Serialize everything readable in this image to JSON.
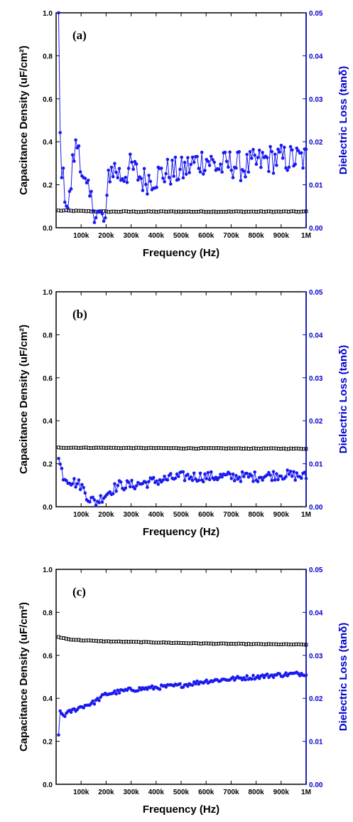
{
  "colors": {
    "left_axis": "#000000",
    "right_axis": "#0000cc",
    "loss_series": "#1a1aee",
    "cap_series": "#000000"
  },
  "chart_data": [
    {
      "type": "scatter",
      "panel_label": "(a)",
      "xlabel": "Frequency (Hz)",
      "ylabel": "Capacitance Density (uF/cm²)",
      "y2label": "Dielectric Loss (tanδ)",
      "xlim": [
        0,
        1000000
      ],
      "ylim": [
        0,
        1.0
      ],
      "y2lim": [
        0,
        0.05
      ],
      "xticks": [
        "100k",
        "200k",
        "300k",
        "400k",
        "500k",
        "600k",
        "700k",
        "800k",
        "900k",
        "1M"
      ],
      "yticks": [
        "0.0",
        "0.2",
        "0.4",
        "0.6",
        "0.8",
        "1.0"
      ],
      "y2ticks": [
        "0.00",
        "0.01",
        "0.02",
        "0.03",
        "0.04",
        "0.05"
      ],
      "series": [
        {
          "axis": "left",
          "style": "open-square",
          "noise": 0.002,
          "values": [
            [
              10000,
              0.08
            ],
            [
              200000,
              0.075
            ],
            [
              1000000,
              0.075
            ]
          ]
        },
        {
          "axis": "right",
          "style": "filled-circle",
          "noise": 0.0035,
          "values": [
            [
              10000,
              0.05
            ],
            [
              15000,
              0.022
            ],
            [
              25000,
              0.012
            ],
            [
              50000,
              0.004
            ],
            [
              70000,
              0.017
            ],
            [
              90000,
              0.02
            ],
            [
              110000,
              0.01
            ],
            [
              140000,
              0.006
            ],
            [
              170000,
              0.003
            ],
            [
              200000,
              0.001
            ],
            [
              210000,
              0.013
            ],
            [
              230000,
              0.014
            ],
            [
              260000,
              0.012
            ],
            [
              300000,
              0.014
            ],
            [
              350000,
              0.011
            ],
            [
              400000,
              0.012
            ],
            [
              450000,
              0.013
            ],
            [
              500000,
              0.013
            ],
            [
              550000,
              0.015
            ],
            [
              600000,
              0.016
            ],
            [
              650000,
              0.014
            ],
            [
              700000,
              0.015
            ],
            [
              750000,
              0.014
            ],
            [
              800000,
              0.015
            ],
            [
              850000,
              0.016
            ],
            [
              900000,
              0.016
            ],
            [
              950000,
              0.016
            ],
            [
              1000000,
              0.016
            ]
          ]
        }
      ]
    },
    {
      "type": "scatter",
      "panel_label": "(b)",
      "xlabel": "Frequency (Hz)",
      "ylabel": "Capacitance Density (uF/cm²)",
      "y2label": "Dielectric Loss (tanδ)",
      "xlim": [
        0,
        1000000
      ],
      "ylim": [
        0,
        1.0
      ],
      "y2lim": [
        0,
        0.05
      ],
      "xticks": [
        "100k",
        "200k",
        "300k",
        "400k",
        "500k",
        "600k",
        "700k",
        "800k",
        "900k",
        "1M"
      ],
      "yticks": [
        "0.0",
        "0.2",
        "0.4",
        "0.6",
        "0.8",
        "1.0"
      ],
      "y2ticks": [
        "0.00",
        "0.01",
        "0.02",
        "0.03",
        "0.04",
        "0.05"
      ],
      "series": [
        {
          "axis": "left",
          "style": "open-square",
          "noise": 0.0015,
          "values": [
            [
              10000,
              0.275
            ],
            [
              500000,
              0.272
            ],
            [
              1000000,
              0.27
            ]
          ]
        },
        {
          "axis": "right",
          "style": "filled-circle",
          "noise": 0.0012,
          "values": [
            [
              10000,
              0.011
            ],
            [
              30000,
              0.007
            ],
            [
              60000,
              0.006
            ],
            [
              100000,
              0.005
            ],
            [
              130000,
              0.002
            ],
            [
              160000,
              0.001
            ],
            [
              200000,
              0.003
            ],
            [
              250000,
              0.005
            ],
            [
              300000,
              0.005
            ],
            [
              400000,
              0.006
            ],
            [
              500000,
              0.007
            ],
            [
              600000,
              0.007
            ],
            [
              700000,
              0.007
            ],
            [
              800000,
              0.007
            ],
            [
              900000,
              0.0075
            ],
            [
              1000000,
              0.007
            ]
          ]
        }
      ]
    },
    {
      "type": "scatter",
      "panel_label": "(c)",
      "xlabel": "Frequency (Hz)",
      "ylabel": "Capacitance Density (uF/cm²)",
      "y2label": "Dielectric Loss (tanδ)",
      "xlim": [
        0,
        1000000
      ],
      "ylim": [
        0,
        1.0
      ],
      "y2lim": [
        0,
        0.05
      ],
      "xticks": [
        "100k",
        "200k",
        "300k",
        "400k",
        "500k",
        "600k",
        "700k",
        "800k",
        "900k",
        "1M"
      ],
      "yticks": [
        "0.0",
        "0.2",
        "0.4",
        "0.6",
        "0.8",
        "1.0"
      ],
      "y2ticks": [
        "0.00",
        "0.01",
        "0.02",
        "0.03",
        "0.04",
        "0.05"
      ],
      "series": [
        {
          "axis": "left",
          "style": "open-square",
          "noise": 0.0015,
          "values": [
            [
              10000,
              0.685
            ],
            [
              50000,
              0.675
            ],
            [
              100000,
              0.67
            ],
            [
              200000,
              0.665
            ],
            [
              400000,
              0.66
            ],
            [
              600000,
              0.655
            ],
            [
              800000,
              0.652
            ],
            [
              1000000,
              0.65
            ]
          ]
        },
        {
          "axis": "right",
          "style": "filled-circle",
          "noise": 0.0005,
          "values": [
            [
              10000,
              0.011
            ],
            [
              15000,
              0.017
            ],
            [
              30000,
              0.016
            ],
            [
              60000,
              0.017
            ],
            [
              100000,
              0.018
            ],
            [
              150000,
              0.019
            ],
            [
              200000,
              0.021
            ],
            [
              300000,
              0.022
            ],
            [
              400000,
              0.0225
            ],
            [
              500000,
              0.023
            ],
            [
              600000,
              0.024
            ],
            [
              700000,
              0.0245
            ],
            [
              800000,
              0.025
            ],
            [
              900000,
              0.0255
            ],
            [
              1000000,
              0.0258
            ]
          ]
        }
      ]
    }
  ]
}
